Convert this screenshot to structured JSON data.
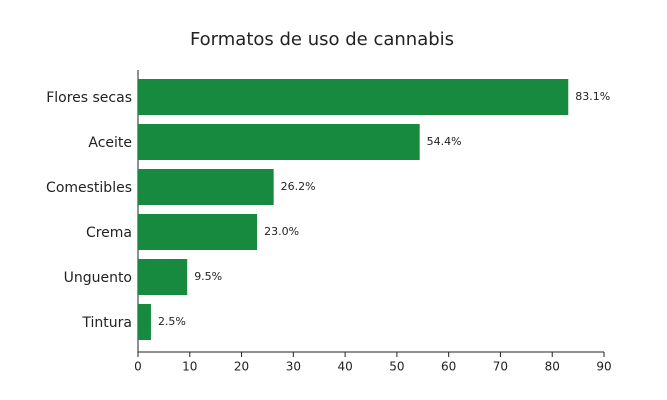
{
  "chart_data": {
    "type": "hbar",
    "title": "Formatos de uso de cannabis",
    "categories": [
      "Flores secas",
      "Aceite",
      "Comestibles",
      "Crema",
      "Unguento",
      "Tintura"
    ],
    "values": [
      83.1,
      54.4,
      26.2,
      23.0,
      9.5,
      2.5
    ],
    "value_labels": [
      "83.1%",
      "54.4%",
      "26.2%",
      "23.0%",
      "9.5%",
      "2.5%"
    ],
    "color": "#178a40",
    "xlim": [
      0,
      90
    ],
    "xticks": [
      0,
      10,
      20,
      30,
      40,
      50,
      60,
      70,
      80,
      90
    ]
  }
}
